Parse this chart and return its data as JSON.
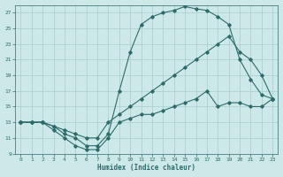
{
  "xlabel": "Humidex (Indice chaleur)",
  "bg_color": "#cce8e8",
  "line_color": "#2d6b6b",
  "grid_color": "#a8cccc",
  "xlim": [
    -0.5,
    23.5
  ],
  "ylim": [
    9,
    28
  ],
  "xticks": [
    0,
    1,
    2,
    3,
    4,
    5,
    6,
    7,
    8,
    9,
    10,
    11,
    12,
    13,
    14,
    15,
    16,
    17,
    18,
    19,
    20,
    21,
    22,
    23
  ],
  "yticks": [
    9,
    11,
    13,
    15,
    17,
    19,
    21,
    23,
    25,
    27
  ],
  "line_top_x": [
    0,
    1,
    2,
    3,
    4,
    5,
    6,
    7,
    8,
    9,
    10,
    11,
    12,
    13,
    14,
    15,
    16,
    17,
    18,
    19,
    20,
    21,
    22,
    23
  ],
  "line_top_y": [
    13,
    13,
    13,
    12.5,
    11.5,
    11,
    10,
    10,
    11.5,
    17,
    22,
    25.5,
    26.5,
    27,
    27.3,
    27.8,
    27.5,
    27.3,
    26.5,
    25.5,
    21,
    18.5,
    16.5,
    16
  ],
  "line_mid_x": [
    0,
    1,
    2,
    3,
    4,
    5,
    6,
    7,
    8,
    9,
    10,
    11,
    12,
    13,
    14,
    15,
    16,
    17,
    18,
    19,
    20,
    21,
    22,
    23
  ],
  "line_mid_y": [
    13,
    13,
    13,
    12.5,
    12,
    11.5,
    11,
    11,
    13,
    14,
    15,
    16,
    17,
    18,
    19,
    20,
    21,
    22,
    23,
    24,
    22,
    21,
    19,
    16
  ],
  "line_bot_x": [
    0,
    1,
    2,
    3,
    4,
    5,
    6,
    7,
    8,
    9,
    10,
    11,
    12,
    13,
    14,
    15,
    16,
    17,
    18,
    19,
    20,
    21,
    22,
    23
  ],
  "line_bot_y": [
    13,
    13,
    13,
    12,
    11,
    10,
    9.5,
    9.5,
    11,
    13,
    13.5,
    14,
    14,
    14.5,
    15,
    15.5,
    16,
    17,
    15,
    15.5,
    15.5,
    15,
    15,
    16
  ]
}
